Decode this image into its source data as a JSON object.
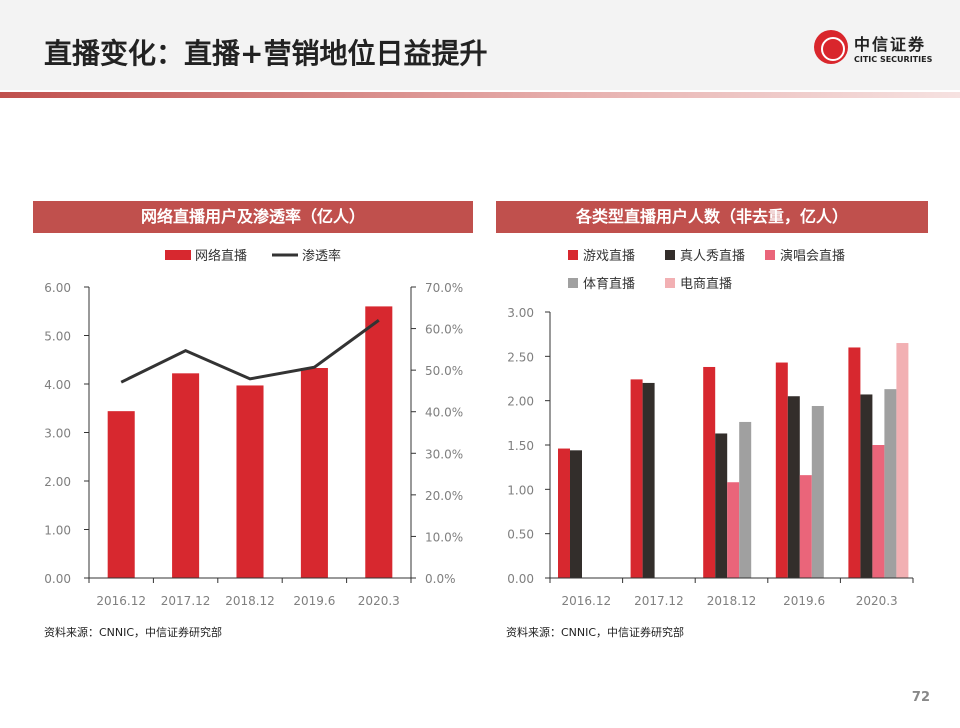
{
  "header": {
    "title": "直播变化：直播+营销地位日益提升",
    "logo_cn": "中信证券",
    "logo_en": "CITIC SECURITIES"
  },
  "page_number": "72",
  "chart_data": [
    {
      "type": "bar",
      "title": "网络直播用户及渗透率（亿人）",
      "categories": [
        "2016.12",
        "2017.12",
        "2018.12",
        "2019.6",
        "2020.3"
      ],
      "series": [
        {
          "name": "网络直播",
          "type": "bar",
          "axis": "left",
          "color": "#d7282f",
          "values": [
            3.44,
            4.22,
            3.97,
            4.33,
            5.6
          ]
        },
        {
          "name": "渗透率",
          "type": "line",
          "axis": "right",
          "color": "#333333",
          "values": [
            47.1,
            54.7,
            47.9,
            50.7,
            62.0
          ]
        }
      ],
      "ylim": [
        0,
        6
      ],
      "yticks": [
        "0.00",
        "1.00",
        "2.00",
        "3.00",
        "4.00",
        "5.00",
        "6.00"
      ],
      "y2lim": [
        0,
        70
      ],
      "y2ticks": [
        "0.0%",
        "10.0%",
        "20.0%",
        "30.0%",
        "40.0%",
        "50.0%",
        "60.0%",
        "70.0%"
      ],
      "legend": "top",
      "source": "资料来源：CNNIC，中信证券研究部"
    },
    {
      "type": "bar",
      "title": "各类型直播用户人数（非去重，亿人）",
      "categories": [
        "2016.12",
        "2017.12",
        "2018.12",
        "2019.6",
        "2020.3"
      ],
      "series": [
        {
          "name": "游戏直播",
          "color": "#d7282f",
          "values": [
            1.46,
            2.24,
            2.38,
            2.43,
            2.6
          ]
        },
        {
          "name": "真人秀直播",
          "color": "#332e2b",
          "values": [
            1.44,
            2.2,
            1.63,
            2.05,
            2.07
          ]
        },
        {
          "name": "演唱会直播",
          "color": "#ea657a",
          "values": [
            null,
            null,
            1.08,
            1.16,
            1.5
          ]
        },
        {
          "name": "体育直播",
          "color": "#a0a0a0",
          "values": [
            null,
            null,
            1.76,
            1.94,
            2.13
          ]
        },
        {
          "name": "电商直播",
          "color": "#f2b0b3",
          "values": [
            null,
            null,
            null,
            null,
            2.65
          ]
        }
      ],
      "ylim": [
        0,
        3
      ],
      "yticks": [
        "0.00",
        "0.50",
        "1.00",
        "1.50",
        "2.00",
        "2.50",
        "3.00"
      ],
      "legend": "top",
      "source": "资料来源：CNNIC，中信证券研究部"
    }
  ]
}
